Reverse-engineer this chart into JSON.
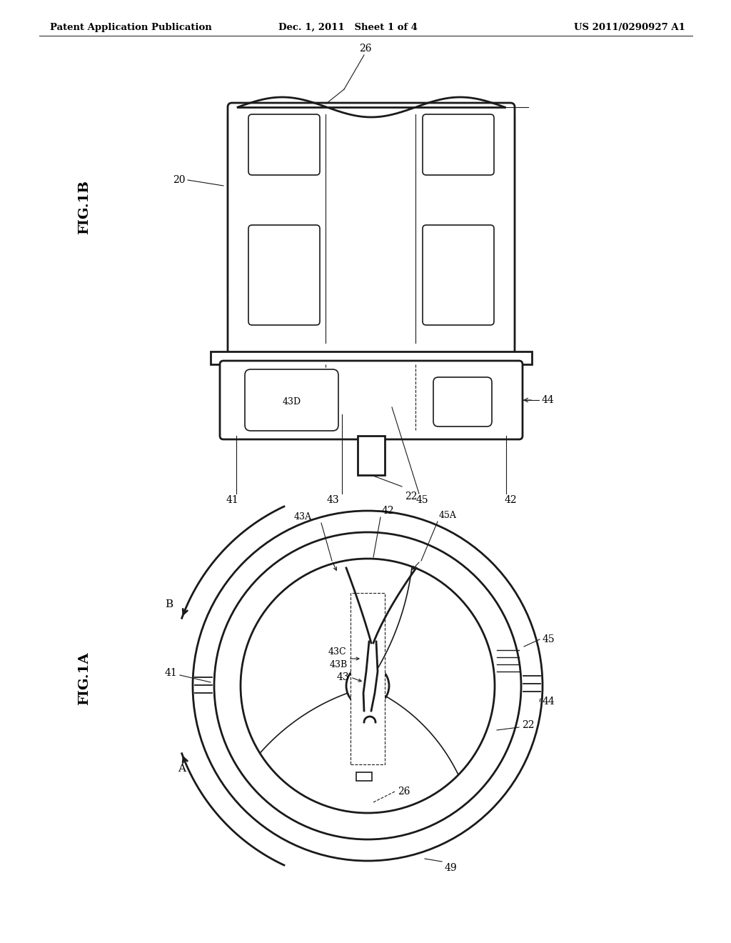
{
  "bg_color": "#ffffff",
  "line_color": "#1a1a1a",
  "header_left": "Patent Application Publication",
  "header_mid": "Dec. 1, 2011   Sheet 1 of 4",
  "header_right": "US 2011/0290927 A1",
  "fig1b_label": "FIG.1B",
  "fig1a_label": "FIG.1A"
}
